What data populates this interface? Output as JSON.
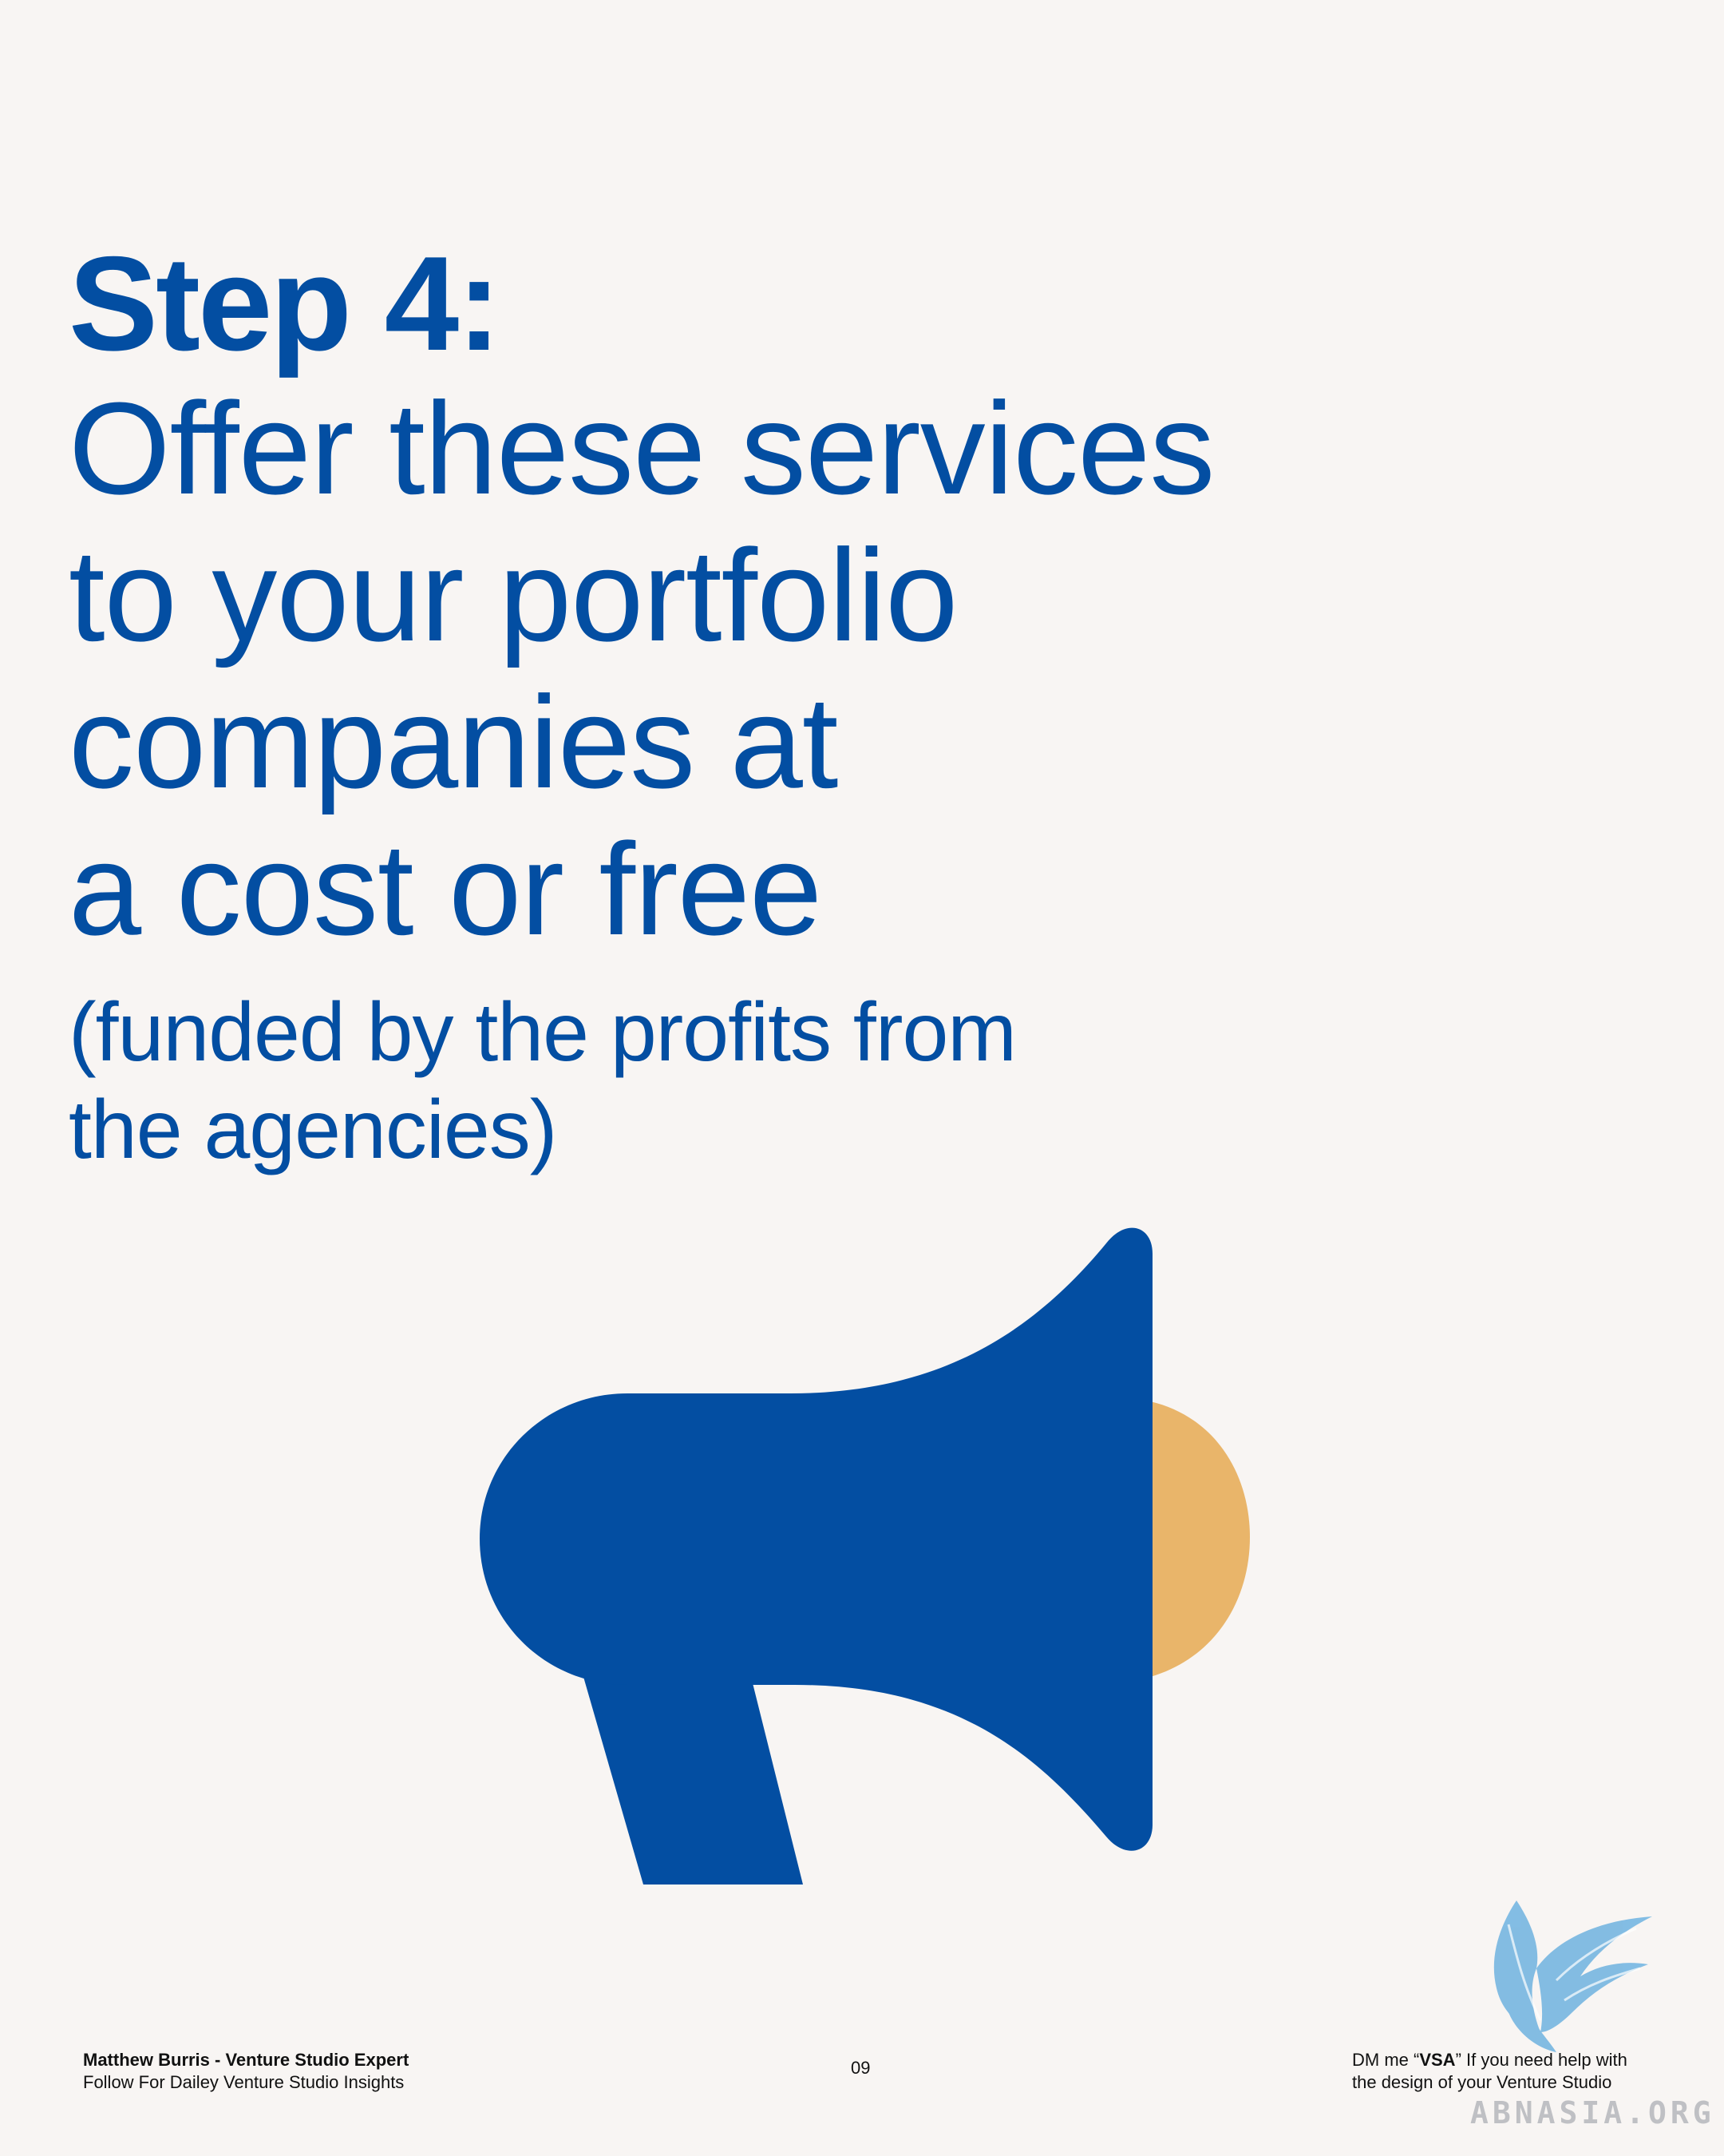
{
  "headline": {
    "step": "Step 4:",
    "lines": [
      "Offer these services",
      "to your portfolio",
      "companies at",
      "a cost or free"
    ],
    "subtitle_lines": [
      "(funded by the profits from",
      "the agencies)"
    ]
  },
  "illustration": {
    "icon": "megaphone-icon",
    "body_color": "#034ea2",
    "mouth_color": "#e9b56a"
  },
  "footer": {
    "author": "Matthew Burris - Venture Studio Expert",
    "tagline": "Follow For Dailey Venture Studio Insights",
    "page_number": "09",
    "cta_prefix": "DM me “",
    "cta_keyword": "VSA",
    "cta_suffix": "” If you need help with",
    "cta_line2": "the design of your Venture Studio"
  },
  "watermark": {
    "text": "ABNASIA.ORG",
    "icon": "bird-logo-icon",
    "color": "#6fb3e0"
  },
  "colors": {
    "background": "#f8f5f3",
    "primary": "#034ea2",
    "accent": "#e9b56a"
  }
}
